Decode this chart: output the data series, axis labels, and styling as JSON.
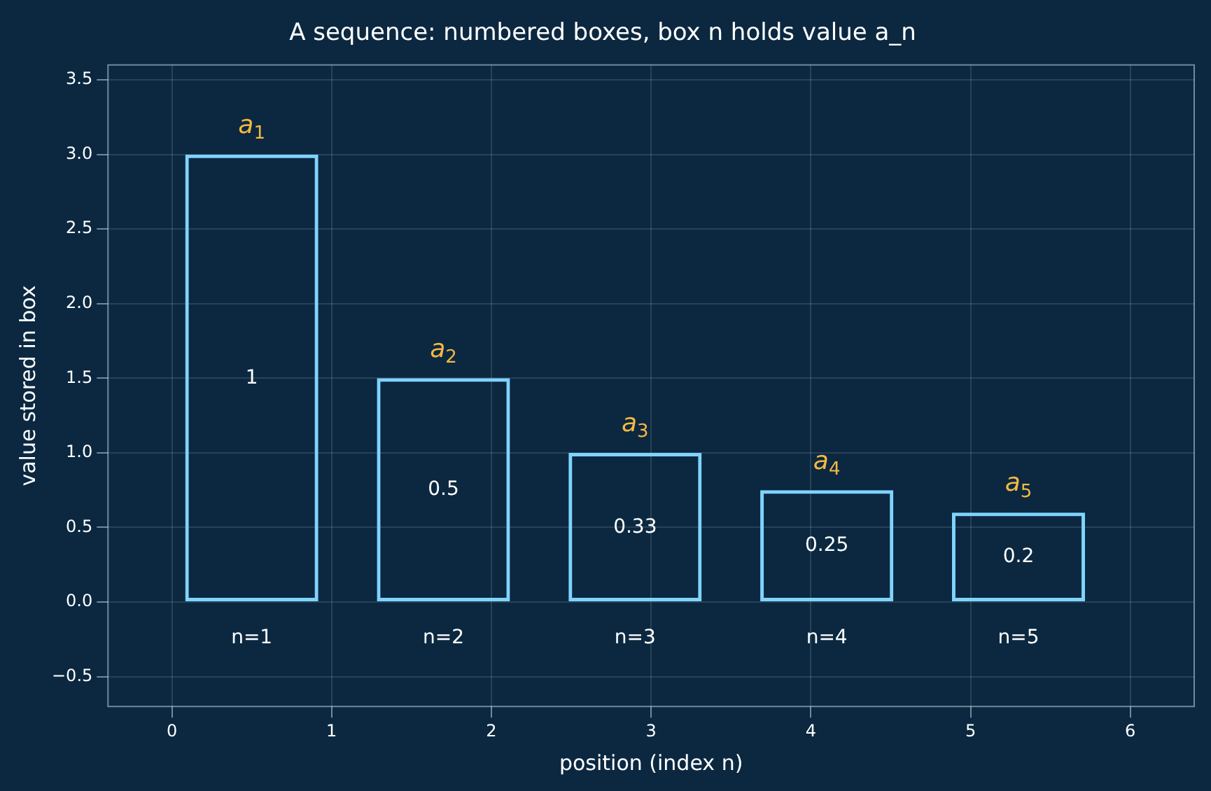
{
  "chart_data": {
    "type": "bar",
    "title": "A sequence: numbered boxes, box n holds value a_n",
    "xlabel": "position (index n)",
    "ylabel": "value stored in box",
    "x": [
      0.5,
      1.7,
      2.9,
      4.1,
      5.3
    ],
    "values": [
      3,
      1.5,
      1,
      0.75,
      0.6
    ],
    "color": "#7fd4ff",
    "xlim": [
      -0.4,
      6.4
    ],
    "xticks": [
      0,
      1,
      2,
      3,
      4,
      5,
      6
    ],
    "ylim": [
      -0.7,
      3.6
    ],
    "yticks": [
      {
        "value": -0.5,
        "label": "−0.5"
      },
      {
        "value": 0,
        "label": "0.0"
      },
      {
        "value": 0.5,
        "label": "0.5"
      },
      {
        "value": 1,
        "label": "1.0"
      },
      {
        "value": 1.5,
        "label": "1.5"
      },
      {
        "value": 2,
        "label": "2.0"
      },
      {
        "value": 2.5,
        "label": "2.5"
      },
      {
        "value": 3,
        "label": "3.0"
      },
      {
        "value": 3.5,
        "label": "3.5"
      }
    ],
    "grid": true,
    "annotations": [
      "a$_{1}$",
      "a$_{2}$",
      "a$_{3}$",
      "a$_{4}$",
      "a$_{5}$",
      "1",
      "0.5",
      "0.33",
      "0.25",
      "0.2",
      "n=1",
      "n=2",
      "n=3",
      "n=4",
      "n=5"
    ]
  }
}
